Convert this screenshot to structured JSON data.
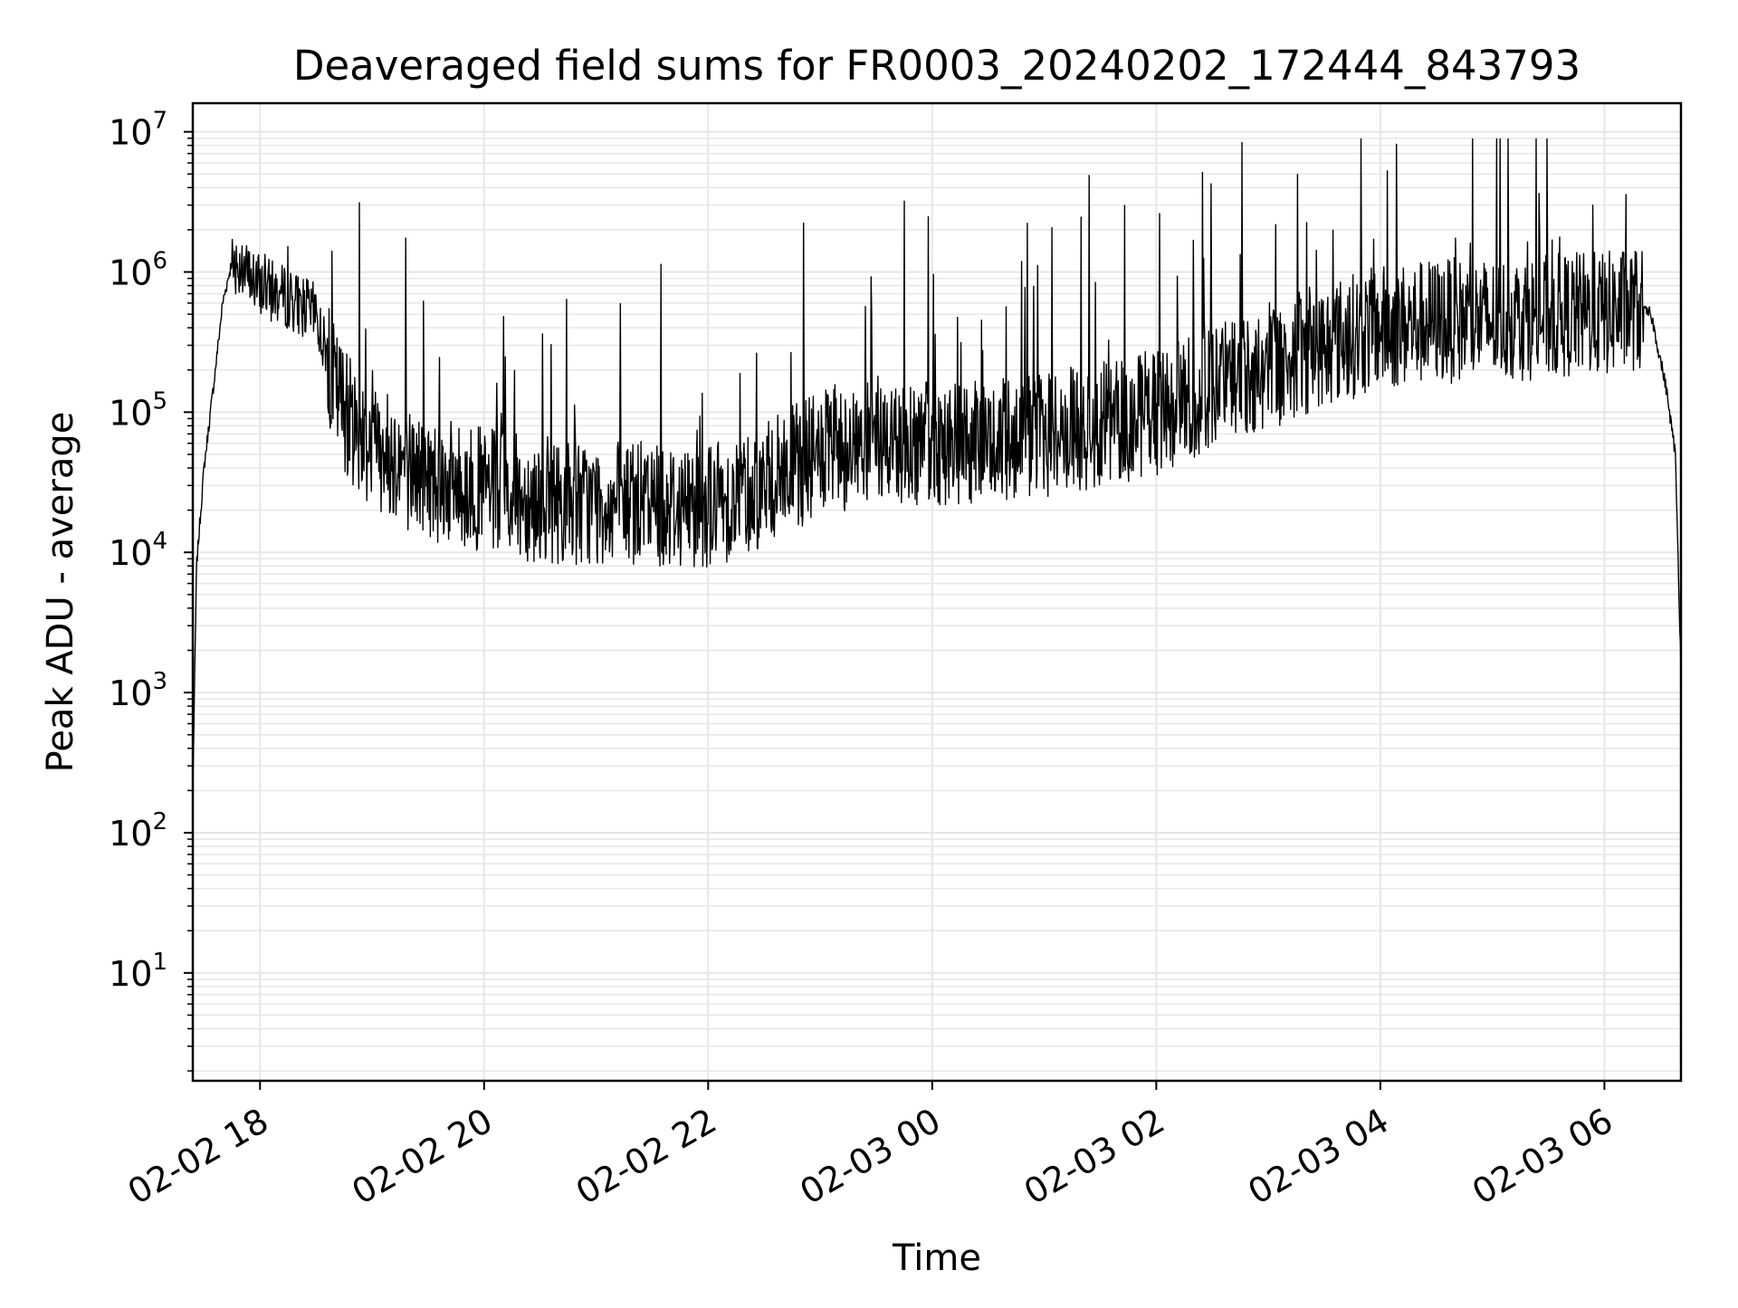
{
  "chart_data": {
    "type": "line",
    "title": "Deaveraged field sums for FR0003_20240202_172444_843793",
    "xlabel": "Time",
    "ylabel": "Peak ADU - average",
    "yscale": "log",
    "ylim": [
      1.7,
      16000000
    ],
    "xlim": [
      "2024-02-02 17:24",
      "2024-02-03 06:41"
    ],
    "grid": true,
    "legend": "none",
    "line_color": "#000000",
    "grid_color": "#e6e6e6",
    "x_ticks": [
      {
        "t": "2024-02-02 18:00",
        "label": "02-02 18"
      },
      {
        "t": "2024-02-02 20:00",
        "label": "02-02 20"
      },
      {
        "t": "2024-02-02 22:00",
        "label": "02-02 22"
      },
      {
        "t": "2024-02-03 00:00",
        "label": "02-03 00"
      },
      {
        "t": "2024-02-03 02:00",
        "label": "02-03 02"
      },
      {
        "t": "2024-02-03 04:00",
        "label": "02-03 04"
      },
      {
        "t": "2024-02-03 06:00",
        "label": "02-03 06"
      }
    ],
    "y_ticks": [
      {
        "value": 10,
        "base": "10",
        "exp": "1"
      },
      {
        "value": 100,
        "base": "10",
        "exp": "2"
      },
      {
        "value": 1000,
        "base": "10",
        "exp": "3"
      },
      {
        "value": 10000,
        "base": "10",
        "exp": "4"
      },
      {
        "value": 100000,
        "base": "10",
        "exp": "5"
      },
      {
        "value": 1000000,
        "base": "10",
        "exp": "6"
      },
      {
        "value": 10000000,
        "base": "10",
        "exp": "7"
      }
    ],
    "series": [
      {
        "x": [
          "2024-02-02 17:24",
          "2024-02-02 17:26",
          "2024-02-02 17:30",
          "2024-02-02 17:35",
          "2024-02-02 17:40",
          "2024-02-02 17:45",
          "2024-02-02 17:50",
          "2024-02-02 17:55",
          "2024-02-02 18:00",
          "2024-02-02 18:10",
          "2024-02-02 18:20",
          "2024-02-02 18:30",
          "2024-02-02 18:40",
          "2024-02-02 18:50",
          "2024-02-02 19:00",
          "2024-02-02 19:10",
          "2024-02-02 19:20",
          "2024-02-02 19:30",
          "2024-02-02 19:45",
          "2024-02-02 20:00",
          "2024-02-02 20:15",
          "2024-02-02 20:30",
          "2024-02-02 20:45",
          "2024-02-02 21:00",
          "2024-02-02 21:15",
          "2024-02-02 21:30",
          "2024-02-02 21:45",
          "2024-02-02 22:00",
          "2024-02-02 22:15",
          "2024-02-02 22:30",
          "2024-02-02 22:45",
          "2024-02-02 23:00",
          "2024-02-02 23:15",
          "2024-02-02 23:30",
          "2024-02-02 23:45",
          "2024-02-03 00:00",
          "2024-02-03 00:15",
          "2024-02-03 00:30",
          "2024-02-03 00:45",
          "2024-02-03 01:00",
          "2024-02-03 01:15",
          "2024-02-03 01:30",
          "2024-02-03 01:45",
          "2024-02-03 02:00",
          "2024-02-03 02:15",
          "2024-02-03 02:30",
          "2024-02-03 02:45",
          "2024-02-03 03:00",
          "2024-02-03 03:15",
          "2024-02-03 03:30",
          "2024-02-03 03:45",
          "2024-02-03 04:00",
          "2024-02-03 04:15",
          "2024-02-03 04:30",
          "2024-02-03 04:45",
          "2024-02-03 05:00",
          "2024-02-03 05:15",
          "2024-02-03 05:30",
          "2024-02-03 05:45",
          "2024-02-03 06:00",
          "2024-02-03 06:15",
          "2024-02-03 06:25",
          "2024-02-03 06:33",
          "2024-02-03 06:38",
          "2024-02-03 06:41"
        ],
        "y": [
          200,
          8000,
          40000,
          150000,
          600000,
          1200000,
          1100000,
          900000,
          800000,
          700000,
          600000,
          500000,
          150000,
          80000,
          60000,
          50000,
          40000,
          35000,
          30000,
          28000,
          25000,
          24000,
          23000,
          22000,
          22000,
          22000,
          22000,
          22000,
          25000,
          30000,
          40000,
          50000,
          55000,
          60000,
          62000,
          60000,
          58000,
          60000,
          65000,
          70000,
          75000,
          80000,
          90000,
          100000,
          120000,
          150000,
          180000,
          200000,
          250000,
          300000,
          350000,
          400000,
          420000,
          450000,
          450000,
          450000,
          470000,
          480000,
          500000,
          500000,
          550000,
          500000,
          150000,
          50000,
          1500
        ]
      }
    ]
  }
}
